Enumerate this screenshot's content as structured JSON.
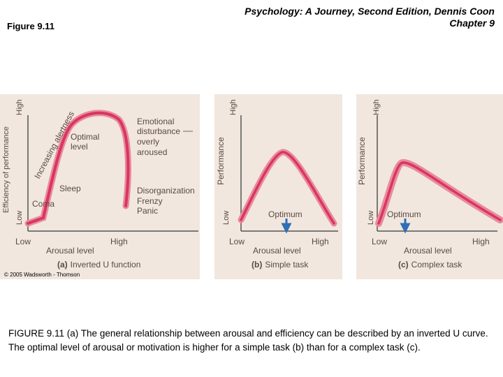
{
  "header": {
    "figure_label": "Figure 9.11",
    "book_line1": "Psychology: A Journey, Second Edition, Dennis Coon",
    "book_line2": "Chapter 9"
  },
  "panels": [
    {
      "ylabel": "Efficiency of performance",
      "y_high": "High",
      "y_low": "Low",
      "x_low": "Low",
      "x_high": "High",
      "xlabel": "Arousal level",
      "caption_letter": "(a)",
      "caption_text": "Inverted U function",
      "curve_label": "Increasing alertness",
      "annotations": {
        "optimal_1": "Optimal",
        "optimal_2": "level",
        "sleep": "Sleep",
        "coma": "Coma",
        "emotional_1": "Emotional",
        "emotional_2": "disturbance",
        "emotional_3": "overly",
        "emotional_4": "aroused",
        "disorg": "Disorganization",
        "frenzy": "Frenzy",
        "panic": "Panic"
      }
    },
    {
      "ylabel": "Performance",
      "y_high": "High",
      "y_low": "Low",
      "x_low": "Low",
      "x_high": "High",
      "xlabel": "Arousal level",
      "caption_letter": "(b)",
      "caption_text": "Simple task",
      "optimum": "Optimum"
    },
    {
      "ylabel": "Performance",
      "y_high": "High",
      "y_low": "Low",
      "x_low": "Low",
      "x_high": "High",
      "xlabel": "Arousal level",
      "caption_letter": "(c)",
      "caption_text": "Complex task",
      "optimum": "Optimum"
    }
  ],
  "copyright": "© 2005 Wadsworth - Thomson",
  "caption": {
    "id": "FIGURE 9.11",
    "text": "(a) The general relationship between arousal and efficiency can be described by an inverted U curve. The optimal level of arousal or motivation is higher for a simple task (b) than for a complex task (c)."
  },
  "colors": {
    "panel_bg": "#f1e7de",
    "curve": "#d9365e",
    "curve_band": "#e98aa0",
    "arrow": "#2f6fb5",
    "text": "#5a4a42"
  }
}
